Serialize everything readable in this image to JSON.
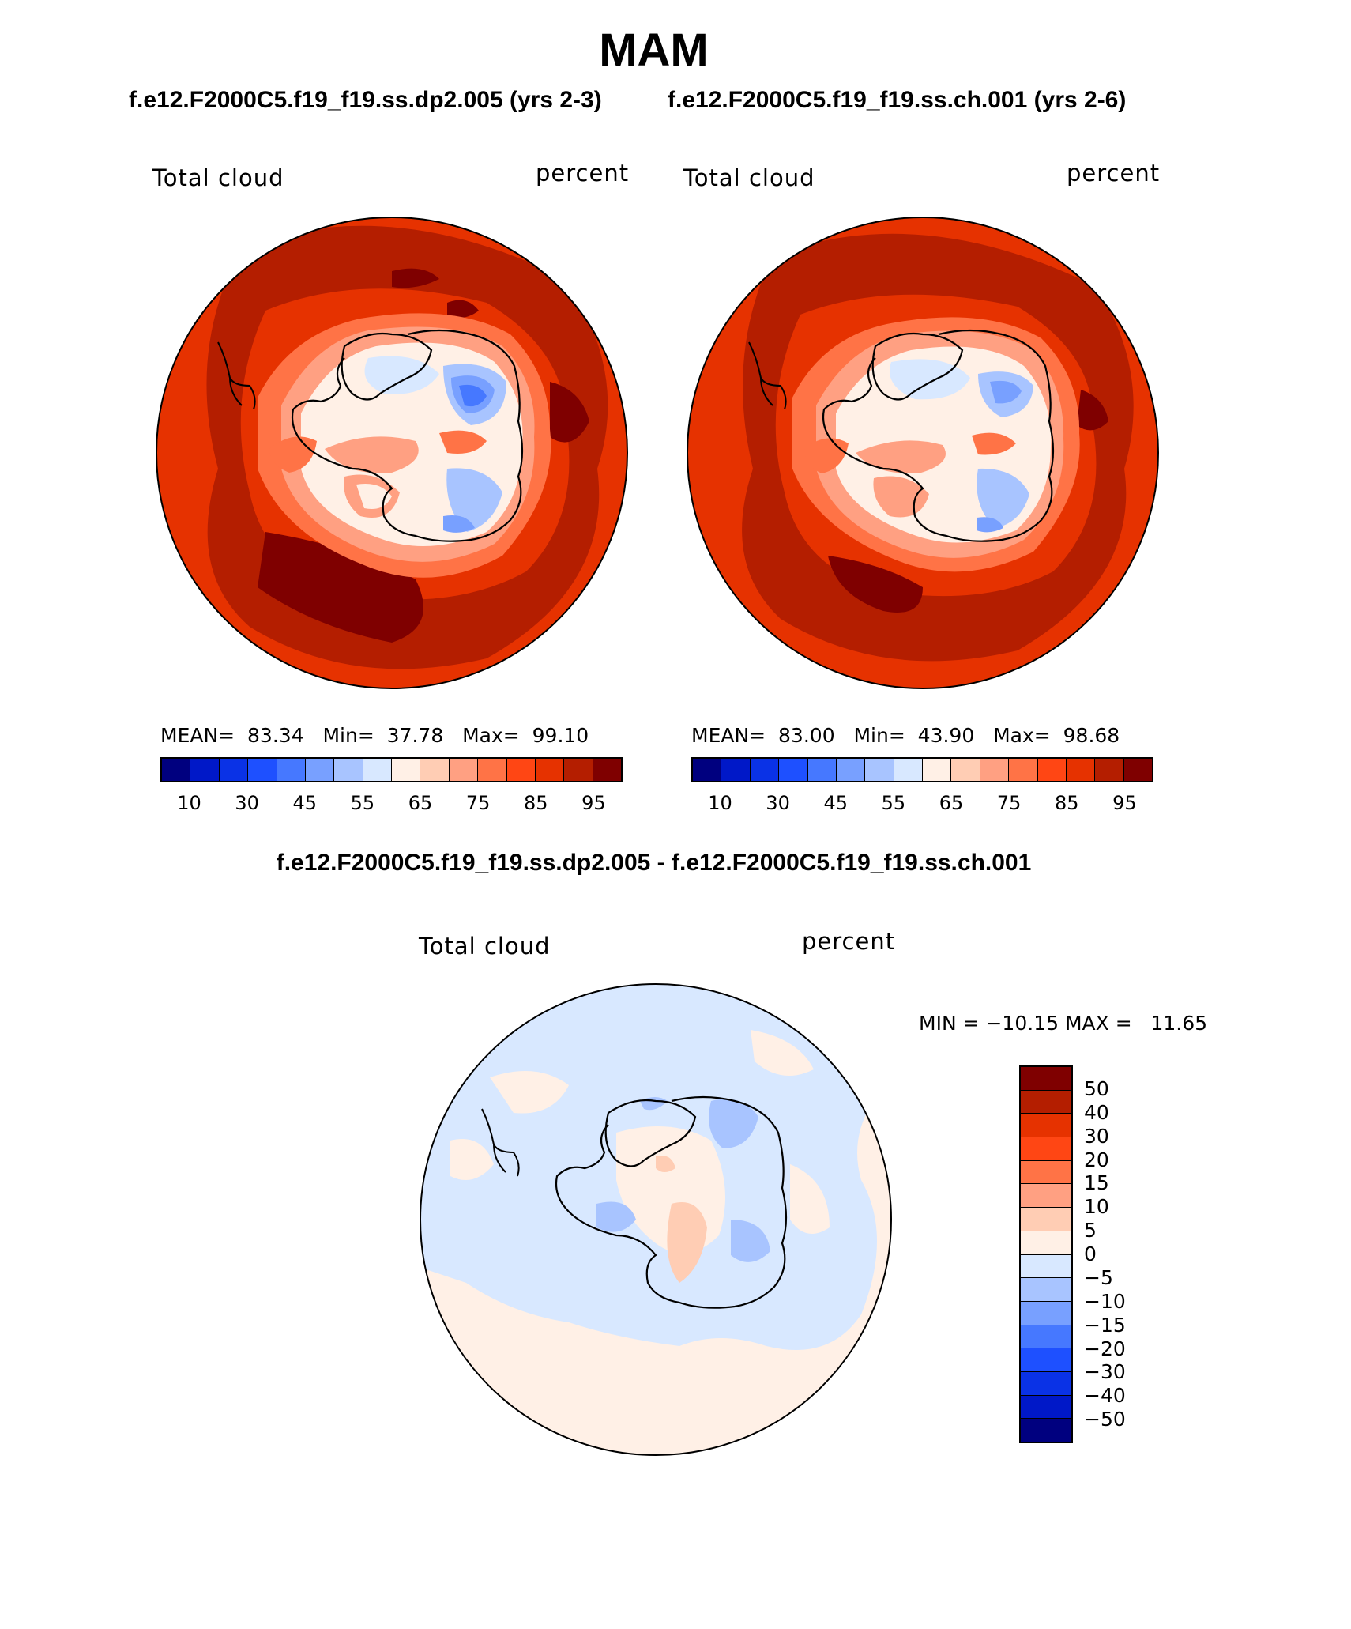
{
  "title": "MAM",
  "case_titles": {
    "left": "f.e12.F2000C5.f19_f19.ss.dp2.005 (yrs 2-3)",
    "right": "f.e12.F2000C5.f19_f19.ss.ch.001 (yrs 2-6)"
  },
  "diff_title": "f.e12.F2000C5.f19_f19.ss.dp2.005 - f.e12.F2000C5.f19_f19.ss.ch.001",
  "panels": [
    {
      "variable": "Total cloud",
      "units": "percent",
      "mean_label": "MEAN=",
      "mean": "83.34",
      "min_label": "Min=",
      "min": "37.78",
      "max_label": "Max=",
      "max": "99.10"
    },
    {
      "variable": "Total cloud",
      "units": "percent",
      "mean_label": "MEAN=",
      "mean": "83.00",
      "min_label": "Min=",
      "min": "43.90",
      "max_label": "Max=",
      "max": "98.68"
    }
  ],
  "diff_panel": {
    "variable": "Total cloud",
    "units": "percent",
    "minmax_text": "MIN = −10.15 MAX =   11.65"
  },
  "colorbar_main": {
    "colors": [
      "#00007f",
      "#0018c8",
      "#0a32e6",
      "#1e50ff",
      "#4678ff",
      "#78a0ff",
      "#a8c4ff",
      "#d8e8ff",
      "#fff0e6",
      "#ffcdb4",
      "#ffa082",
      "#ff7346",
      "#ff4614",
      "#e63200",
      "#b41e00",
      "#7f0000"
    ],
    "tick_labels": [
      "10",
      "30",
      "45",
      "55",
      "65",
      "75",
      "85",
      "95"
    ]
  },
  "colorbar_diff": {
    "colors": [
      "#7f0000",
      "#b41e00",
      "#e63200",
      "#ff4614",
      "#ff7346",
      "#ffa082",
      "#ffcdb4",
      "#fff0e6",
      "#d8e8ff",
      "#a8c4ff",
      "#78a0ff",
      "#4678ff",
      "#1e50ff",
      "#0a32e6",
      "#0018c8",
      "#00007f"
    ],
    "tick_labels": [
      "50",
      "40",
      "30",
      "20",
      "15",
      "10",
      "5",
      "0",
      "−5",
      "−10",
      "−15",
      "−20",
      "−30",
      "−40",
      "−50"
    ]
  },
  "map_colors": {
    "ocean_main": "#e63200",
    "ocean_dark": "#b41e00",
    "ocean_darkest": "#7f0000",
    "ice_edge": "#ff7346",
    "ice_ring": "#ffa082",
    "interior": "#fff0e6",
    "interior_light_blue": "#d8e8ff",
    "interior_blue": "#a8c4ff",
    "interior_mid_blue": "#78a0ff",
    "interior_deep_blue": "#4678ff",
    "diff_positive": "#fff0e6",
    "diff_negative": "#d8e8ff",
    "diff_neg2": "#a8c4ff",
    "diff_pos2": "#ffcdb4"
  }
}
